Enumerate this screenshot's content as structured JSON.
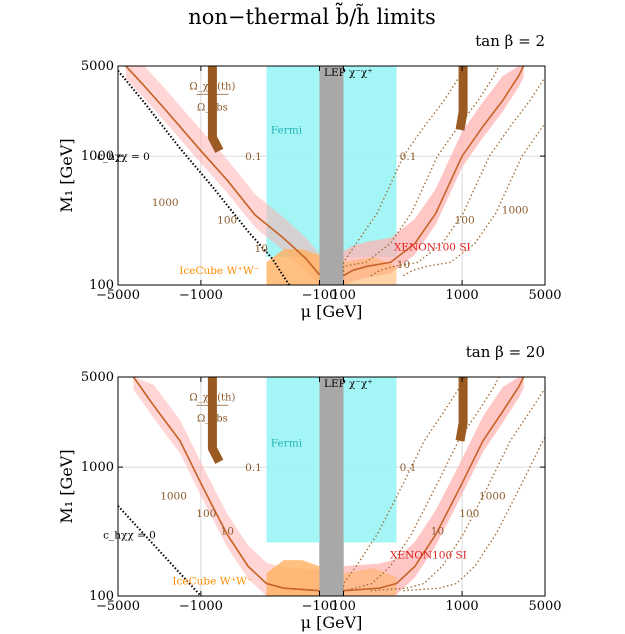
{
  "figure": {
    "title": "non−thermal b̃/h̃ limits"
  },
  "chart_data": [
    {
      "type": "line",
      "panel_label": "tan β = 2",
      "xlabel": "μ [GeV]",
      "ylabel": "M₁ [GeV]",
      "xscale": "symlog",
      "yscale": "log",
      "xlim": [
        -5000,
        5000
      ],
      "ylim": [
        100,
        5000
      ],
      "xticks": [
        -5000,
        -1000,
        -100,
        100,
        1000,
        5000
      ],
      "xtick_labels": [
        "−5000",
        "−1000",
        "−100",
        "100",
        "1000",
        "5000"
      ],
      "yticks": [
        100,
        1000,
        5000
      ],
      "ytick_labels": [
        "100",
        "1000",
        "5000"
      ],
      "regions": [
        {
          "name": "Fermi",
          "color": "#9ff5f5",
          "x_range": [
            -280,
            280
          ],
          "y_range": [
            165,
            5000
          ]
        },
        {
          "name": "LEP χ⁻χ⁺",
          "color": "#a8a8a8",
          "x_range": [
            -100,
            100
          ],
          "y_range": [
            100,
            5000
          ]
        }
      ],
      "annotations": [
        {
          "text": "LEP χ⁻χ⁺",
          "x": 110,
          "y": 4200,
          "color": "#000000"
        },
        {
          "text": "Fermi",
          "x": -190,
          "y": 1500,
          "color": "#22b5b5"
        },
        {
          "text": "Ω_χ^(th)",
          "x": -800,
          "y": 3300,
          "color": "#8b5a2b"
        },
        {
          "text": "Ω_obs",
          "x": -800,
          "y": 2250,
          "color": "#8b5a2b"
        },
        {
          "text": "c_hχχ = 0",
          "x": -4500,
          "y": 930,
          "color": "#000000"
        },
        {
          "text": "0.1",
          "x": -360,
          "y": 930,
          "color": "#8b5a2b"
        },
        {
          "text": "0.1",
          "x": 350,
          "y": 930,
          "color": "#8b5a2b"
        },
        {
          "text": "1000",
          "x": -2000,
          "y": 410,
          "color": "#8b5a2b"
        },
        {
          "text": "100",
          "x": -600,
          "y": 300,
          "color": "#8b5a2b"
        },
        {
          "text": "10",
          "x": -310,
          "y": 180,
          "color": "#8b5a2b"
        },
        {
          "text": "100",
          "x": 1050,
          "y": 300,
          "color": "#8b5a2b"
        },
        {
          "text": "1000",
          "x": 2800,
          "y": 360,
          "color": "#8b5a2b"
        },
        {
          "text": "10",
          "x": 320,
          "y": 135,
          "color": "#8b5a2b"
        },
        {
          "text": "XENON100 SI",
          "x": 560,
          "y": 185,
          "color": "#e02020"
        },
        {
          "text": "IceCube W⁺W⁻",
          "x": -700,
          "y": 122,
          "color": "#ff8c00"
        }
      ],
      "series": [
        {
          "name": "relic-right",
          "color": "#c8642a",
          "points": [
            [
              100,
              118
            ],
            [
              120,
              130
            ],
            [
              160,
              140
            ],
            [
              250,
              150
            ],
            [
              400,
              210
            ],
            [
              600,
              360
            ],
            [
              800,
              640
            ],
            [
              1000,
              1000
            ],
            [
              1500,
              1700
            ],
            [
              2200,
              2700
            ],
            [
              3000,
              4200
            ],
            [
              3300,
              5000
            ]
          ]
        },
        {
          "name": "relic-left",
          "color": "#c8642a",
          "points": [
            [
              -100,
              120
            ],
            [
              -130,
              160
            ],
            [
              -200,
              230
            ],
            [
              -350,
              350
            ],
            [
              -600,
              650
            ],
            [
              -1000,
              1100
            ],
            [
              -2000,
              2300
            ],
            [
              -3000,
              3500
            ],
            [
              -4300,
              5000
            ]
          ]
        },
        {
          "name": "chxx-zero",
          "color": "#000000",
          "points": [
            [
              -5000,
              4600
            ],
            [
              -3000,
              2600
            ],
            [
              -1500,
              1150
            ],
            [
              -800,
              580
            ],
            [
              -400,
              260
            ],
            [
              -250,
              160
            ],
            [
              -180,
              100
            ]
          ]
        }
      ]
    },
    {
      "type": "line",
      "panel_label": "tan β = 20",
      "xlabel": "μ [GeV]",
      "ylabel": "M₁ [GeV]",
      "xscale": "symlog",
      "yscale": "log",
      "xlim": [
        -5000,
        5000
      ],
      "ylim": [
        100,
        5000
      ],
      "xticks": [
        -5000,
        -1000,
        -100,
        100,
        1000,
        5000
      ],
      "xtick_labels": [
        "−5000",
        "−1000",
        "−100",
        "100",
        "1000",
        "5000"
      ],
      "yticks": [
        100,
        1000,
        5000
      ],
      "ytick_labels": [
        "100",
        "1000",
        "5000"
      ],
      "regions": [
        {
          "name": "Fermi",
          "color": "#9ff5f5",
          "x_range": [
            -280,
            280
          ],
          "y_range": [
            260,
            5000
          ]
        },
        {
          "name": "LEP χ⁻χ⁺",
          "color": "#a8a8a8",
          "x_range": [
            -100,
            100
          ],
          "y_range": [
            100,
            5000
          ]
        }
      ],
      "annotations": [
        {
          "text": "LEP χ⁻χ⁺",
          "x": 110,
          "y": 4200,
          "color": "#000000"
        },
        {
          "text": "Fermi",
          "x": -190,
          "y": 1450,
          "color": "#22b5b5"
        },
        {
          "text": "Ω_χ^(th)",
          "x": -800,
          "y": 3300,
          "color": "#8b5a2b"
        },
        {
          "text": "Ω_obs",
          "x": -800,
          "y": 2250,
          "color": "#8b5a2b"
        },
        {
          "text": "c_hχχ = 0",
          "x": -4000,
          "y": 280,
          "color": "#000000"
        },
        {
          "text": "0.1",
          "x": -360,
          "y": 930,
          "color": "#8b5a2b"
        },
        {
          "text": "0.1",
          "x": 350,
          "y": 930,
          "color": "#8b5a2b"
        },
        {
          "text": "1000",
          "x": -1700,
          "y": 560,
          "color": "#8b5a2b"
        },
        {
          "text": "100",
          "x": -900,
          "y": 410,
          "color": "#8b5a2b"
        },
        {
          "text": "10",
          "x": -600,
          "y": 300,
          "color": "#8b5a2b"
        },
        {
          "text": "100",
          "x": 1150,
          "y": 410,
          "color": "#8b5a2b"
        },
        {
          "text": "1000",
          "x": 1800,
          "y": 560,
          "color": "#8b5a2b"
        },
        {
          "text": "10",
          "x": 620,
          "y": 300,
          "color": "#8b5a2b"
        },
        {
          "text": "XENON100 SI",
          "x": 520,
          "y": 195,
          "color": "#e02020"
        },
        {
          "text": "IceCube W⁺W⁻",
          "x": -800,
          "y": 123,
          "color": "#ff8c00"
        }
      ],
      "series": [
        {
          "name": "relic-right",
          "color": "#c8642a",
          "points": [
            [
              100,
              110
            ],
            [
              200,
              115
            ],
            [
              280,
              125
            ],
            [
              400,
              170
            ],
            [
              600,
              300
            ],
            [
              800,
              500
            ],
            [
              1000,
              750
            ],
            [
              1500,
              1600
            ],
            [
              2200,
              2700
            ],
            [
              3000,
              4200
            ],
            [
              3300,
              5000
            ]
          ]
        },
        {
          "name": "relic-left",
          "color": "#c8642a",
          "points": [
            [
              -100,
              110
            ],
            [
              -200,
              115
            ],
            [
              -280,
              125
            ],
            [
              -400,
              170
            ],
            [
              -600,
              300
            ],
            [
              -800,
              500
            ],
            [
              -1000,
              750
            ],
            [
              -1500,
              1600
            ],
            [
              -2500,
              3000
            ],
            [
              -3700,
              5000
            ]
          ]
        },
        {
          "name": "chxx-zero",
          "color": "#000000",
          "points": [
            [
              -5000,
              500
            ],
            [
              -3000,
              300
            ],
            [
              -1800,
              180
            ],
            [
              -1000,
              100
            ]
          ]
        }
      ]
    }
  ]
}
